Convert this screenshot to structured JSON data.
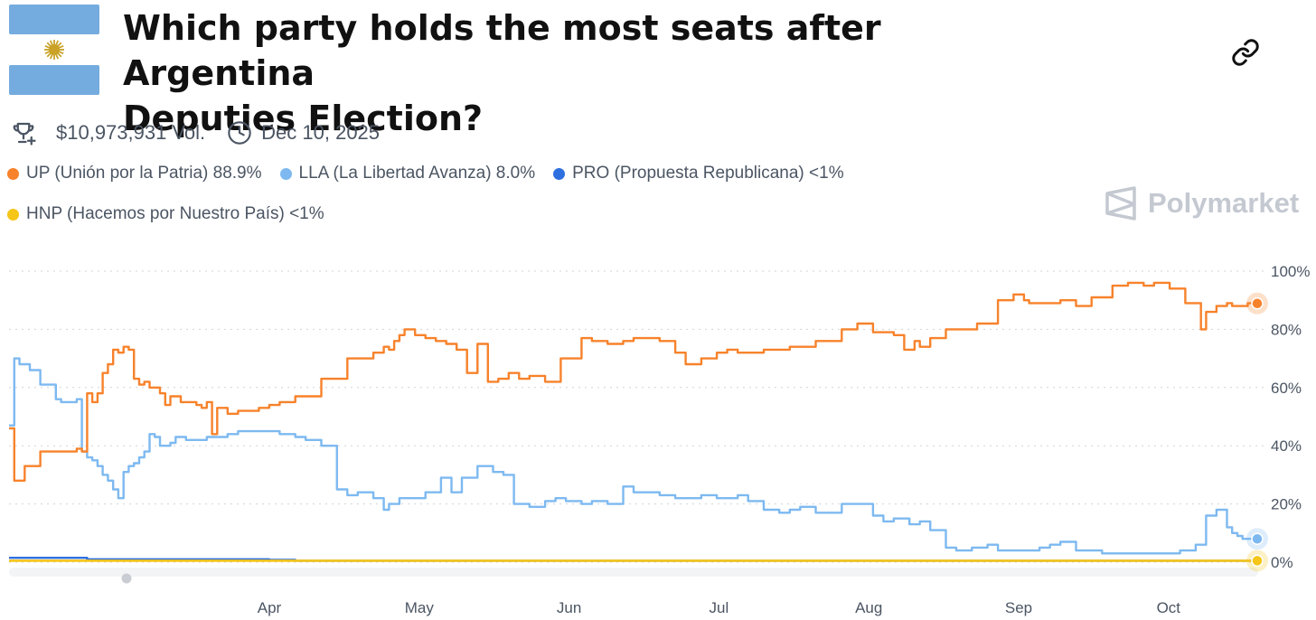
{
  "header": {
    "title_line1": "Which party holds the most seats after Argentina",
    "title_line2": "Deputies Election?",
    "volume": "$10,973,931 Vol.",
    "date": "Dec 10, 2025",
    "flag_colors": {
      "blue": "#74ACDF",
      "white": "#FFFFFF",
      "sun": "#C9A227"
    }
  },
  "brand": {
    "name": "Polymarket"
  },
  "legend": [
    {
      "label": "UP (Unión por la Patria) 88.9%",
      "color": "#F7822B"
    },
    {
      "label": "LLA (La Libertad Avanza) 8.0%",
      "color": "#7DB9F0"
    },
    {
      "label": "PRO (Propuesta Republicana) <1%",
      "color": "#2E6FE0"
    },
    {
      "label": "HNP (Hacemos por Nuestro País) <1%",
      "color": "#F5C518"
    }
  ],
  "chart_data": {
    "type": "line",
    "x_ticks": [
      "Apr",
      "May",
      "Jun",
      "Jul",
      "Aug",
      "Sep",
      "Oct"
    ],
    "y_ticks": [
      "100%",
      "80%",
      "60%",
      "40%",
      "20%",
      "0%"
    ],
    "ylim": [
      0,
      100
    ],
    "xlim": [
      0,
      240
    ],
    "grid": true,
    "series": [
      {
        "name": "UP (Unión por la Patria)",
        "color": "#F7822B",
        "x": [
          0,
          1,
          3,
          5,
          6,
          9,
          13,
          14,
          15,
          16,
          17,
          18,
          19,
          20,
          21,
          22,
          23,
          24,
          25,
          26,
          27,
          28,
          29,
          30,
          31,
          33,
          36,
          37,
          38,
          39,
          40,
          42,
          44,
          46,
          48,
          50,
          52,
          55,
          60,
          65,
          70,
          72,
          73,
          74,
          75,
          76,
          78,
          80,
          82,
          84,
          86,
          88,
          90,
          92,
          94,
          95,
          96,
          98,
          100,
          103,
          106,
          110,
          112,
          115,
          118,
          120,
          123,
          125,
          128,
          130,
          133,
          136,
          138,
          140,
          143,
          145,
          150,
          155,
          160,
          163,
          166,
          170,
          172,
          174,
          175,
          177,
          180,
          183,
          186,
          190,
          193,
          195,
          196,
          199,
          202,
          205,
          208,
          210,
          212,
          215,
          218,
          220,
          223,
          226,
          229,
          230,
          232,
          234,
          235,
          236,
          237,
          238,
          239,
          240
        ],
        "y": [
          46,
          28,
          33,
          33,
          38,
          38,
          39,
          38,
          58,
          55,
          58,
          65,
          68,
          73,
          72,
          74,
          73,
          63,
          61,
          62,
          60,
          60,
          58,
          54,
          57,
          55,
          54,
          53,
          55,
          44,
          53,
          51,
          52,
          52,
          53,
          54,
          55,
          57,
          63,
          70,
          72,
          74,
          73,
          76,
          78,
          80,
          78,
          77,
          76,
          75,
          73,
          65,
          75,
          62,
          63,
          63,
          65,
          63,
          64,
          62,
          70,
          77,
          76,
          75,
          76,
          77,
          77,
          76,
          72,
          68,
          70,
          72,
          73,
          72,
          72,
          73,
          74,
          76,
          80,
          82,
          79,
          78,
          73,
          76,
          74,
          77,
          80,
          80,
          82,
          90,
          92,
          90,
          89,
          89,
          90,
          88,
          91,
          91,
          95,
          96,
          95,
          96,
          94,
          89,
          80,
          86,
          88,
          89,
          88,
          88,
          88,
          89,
          89,
          89
        ]
      },
      {
        "name": "LLA (La Libertad Avanza)",
        "color": "#7DB9F0",
        "x": [
          0,
          1,
          2,
          4,
          6,
          9,
          10,
          12,
          13,
          14,
          15,
          16,
          17,
          18,
          19,
          20,
          21,
          22,
          23,
          24,
          25,
          26,
          27,
          28,
          29,
          30,
          31,
          32,
          34,
          36,
          38,
          40,
          42,
          44,
          48,
          52,
          55,
          57,
          60,
          63,
          65,
          67,
          70,
          72,
          73,
          75,
          77,
          80,
          83,
          85,
          87,
          90,
          93,
          95,
          97,
          100,
          103,
          105,
          107,
          110,
          112,
          115,
          118,
          120,
          123,
          125,
          128,
          130,
          133,
          136,
          138,
          140,
          142,
          145,
          148,
          150,
          152,
          155,
          160,
          163,
          166,
          168,
          170,
          173,
          175,
          177,
          180,
          182,
          185,
          188,
          190,
          192,
          195,
          198,
          200,
          202,
          205,
          210,
          215,
          220,
          225,
          228,
          230,
          232,
          234,
          235,
          236,
          237,
          238,
          239,
          240
        ],
        "y": [
          47,
          70,
          68,
          66,
          61,
          56,
          55,
          55,
          56,
          38,
          36,
          35,
          33,
          30,
          28,
          25,
          22,
          31,
          33,
          34,
          36,
          38,
          44,
          43,
          40,
          40,
          41,
          43,
          42,
          42,
          43,
          43,
          44,
          45,
          45,
          44,
          43,
          42,
          40,
          25,
          23,
          24,
          22,
          18,
          20,
          22,
          22,
          24,
          29,
          24,
          29,
          33,
          31,
          30,
          20,
          19,
          21,
          22,
          21,
          20,
          21,
          20,
          26,
          24,
          24,
          23,
          22,
          22,
          23,
          22,
          22,
          23,
          21,
          18,
          17,
          18,
          19,
          17,
          20,
          20,
          16,
          14,
          15,
          13,
          14,
          11,
          5,
          4,
          5,
          6,
          4,
          4,
          4,
          5,
          6,
          7,
          4,
          3,
          3,
          3,
          4,
          6,
          16,
          18,
          12,
          10,
          9,
          8,
          8,
          8,
          8
        ]
      },
      {
        "name": "PRO (Propuesta Republicana)",
        "color": "#2E6FE0",
        "x": [
          0,
          2,
          5,
          10,
          15,
          20,
          30,
          40,
          50,
          55,
          60,
          80,
          100,
          140,
          180,
          200,
          220,
          240
        ],
        "y": [
          1.5,
          1.5,
          1.5,
          1.5,
          1,
          1,
          1,
          1,
          0.8,
          0.5,
          0.5,
          0.5,
          0.5,
          0.5,
          0.5,
          0.5,
          0.5,
          0.5
        ]
      },
      {
        "name": "HNP (Hacemos por Nuestro País)",
        "color": "#F5C518",
        "x": [
          0,
          20,
          40,
          60,
          80,
          100,
          120,
          140,
          160,
          180,
          200,
          220,
          240
        ],
        "y": [
          0.5,
          0.5,
          0.5,
          0.5,
          0.5,
          0.5,
          0.5,
          0.5,
          0.5,
          0.5,
          0.5,
          0.5,
          0.5
        ]
      }
    ],
    "endpoints": [
      {
        "series": "UP (Unión por la Patria)",
        "value": 88.9
      },
      {
        "series": "LLA (La Libertad Avanza)",
        "value": 8.0
      },
      {
        "series": "HNP (Hacemos por Nuestro País)",
        "value": 0.5
      }
    ]
  }
}
